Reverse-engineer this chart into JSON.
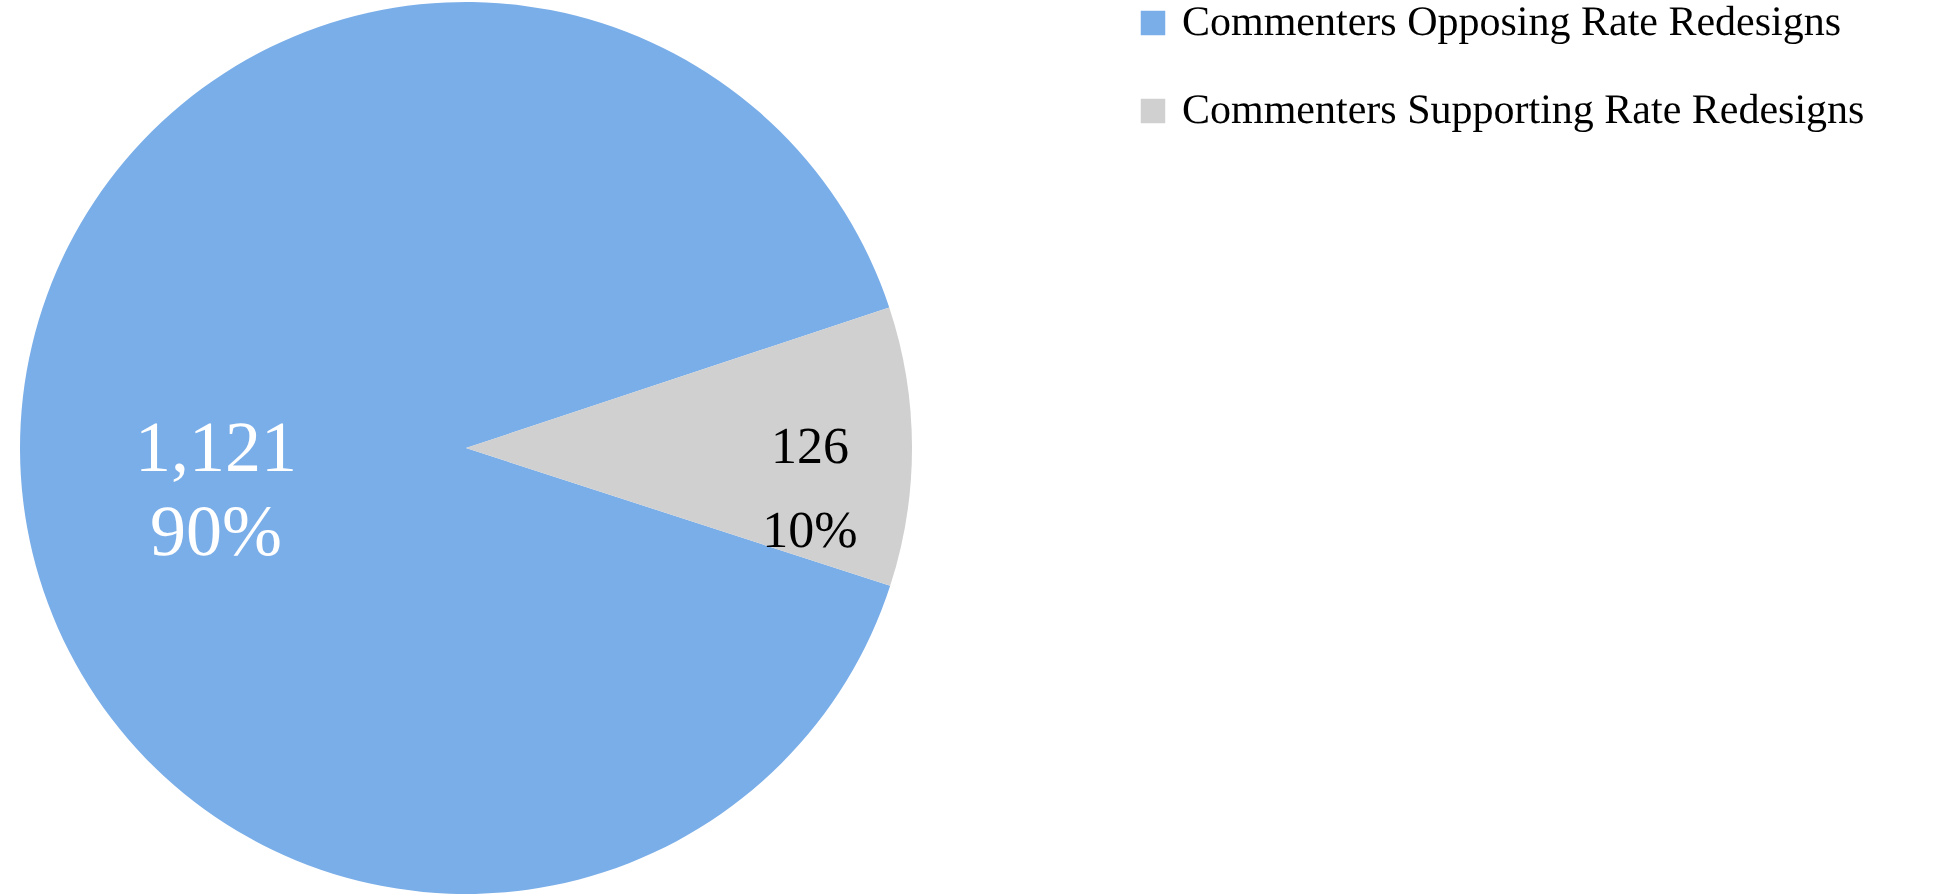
{
  "chart_data": {
    "type": "pie",
    "categories": [
      "Commenters Opposing Rate Redesigns",
      "Commenters Supporting Rate Redesigns"
    ],
    "values": [
      1121,
      126
    ],
    "colors": [
      "#7aaee8",
      "#d0d0d0"
    ],
    "value_labels": [
      "1,121\n90%",
      "126\n10%"
    ],
    "legend": "right"
  }
}
